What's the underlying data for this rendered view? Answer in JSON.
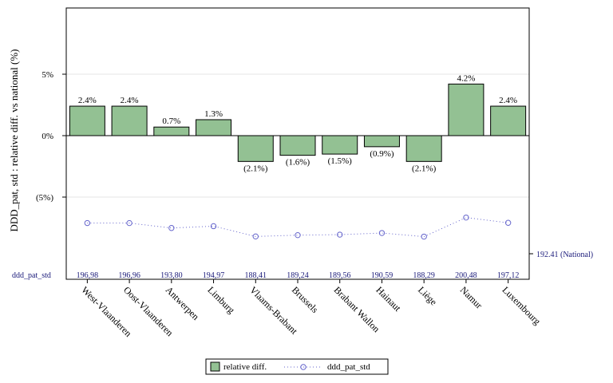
{
  "chart_data": {
    "type": "bar",
    "ylabel": "DDD_pat, std : relative diff. vs national (%)",
    "ylim": [
      -10.5,
      10.5
    ],
    "yticks": [
      {
        "value": 5,
        "label": "5%"
      },
      {
        "value": 0,
        "label": "0%"
      },
      {
        "value": -5,
        "label": "(5%)"
      }
    ],
    "categories": [
      "West-Vlaanderen",
      "Oost-Vlaanderen",
      "Antwerpen",
      "Limburg",
      "Vlaams-Brabant",
      "Brussels",
      "Brabant Wallon",
      "Hainaut",
      "Liège",
      "Namur",
      "Luxembourg"
    ],
    "series": [
      {
        "name": "relative diff.",
        "values": [
          2.4,
          2.4,
          0.7,
          1.3,
          -2.1,
          -1.6,
          -1.5,
          -0.9,
          -2.1,
          4.2,
          2.4
        ],
        "labels": [
          "2.4%",
          "2.4%",
          "0.7%",
          "1.3%",
          "(2.1%)",
          "(1.6%)",
          "(1.5%)",
          "(0.9%)",
          "(2.1%)",
          "4.2%",
          "2.4%"
        ],
        "color": "#93c193"
      },
      {
        "name": "ddd_pat_std",
        "values": [
          196.98,
          196.96,
          193.8,
          194.97,
          188.41,
          189.24,
          189.56,
          190.59,
          188.29,
          200.48,
          197.12
        ],
        "labels": [
          "196,98",
          "196,96",
          "193,80",
          "194,97",
          "188,41",
          "189,24",
          "189,56",
          "190,59",
          "188,29",
          "200,48",
          "197,12"
        ],
        "color": "#6666cc"
      }
    ],
    "row_label": "ddd_pat_std",
    "national_label": "192.41 (National)",
    "ddd_range": [
      160,
      210
    ],
    "grid": true,
    "legend_position": "bottom"
  }
}
